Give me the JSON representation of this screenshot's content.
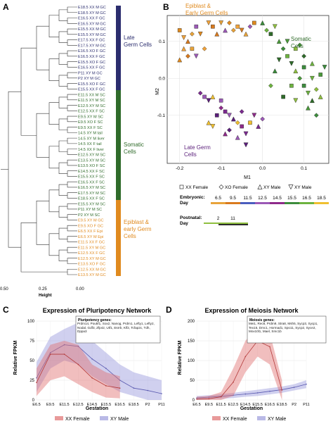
{
  "panels": {
    "A": {
      "letter": "A",
      "axis_ticks": [
        "0.50",
        "0.25",
        "0.00"
      ],
      "axis_label": "Height",
      "leaves": [
        "E18.5 XX M GC",
        "E18.5 XY M GC",
        "E16.5 XX F GC",
        "E16.5 XY M GC",
        "E15.5 XX M GC",
        "E15.5 XY M GC",
        "E17.5 XX F GC",
        "E17.5 XY M GC",
        "E16.5 XO F GC",
        "E16.5 XX F GC",
        "E15.5 XO F GC",
        "E16.5 XX F GC",
        "P11 XY M GC",
        "P2 XY M GC",
        "E15.5 XO F GC",
        "E15.5 XX F GC",
        "E11.5 XX M SC",
        "E11.5 XY M SC",
        "E12.5 XY M SC",
        "E12.5 XX F SC",
        "E9.5 XY M SC",
        "E9.5 XO F SC",
        "E9.5 XX F SC",
        "14.5 XY M tail",
        "14.5 XY M liver",
        "14.5 XX F tail",
        "14.5 XX F liver",
        "E12.5 XY M SC",
        "E13.5 XY M SC",
        "E13.5 XO F SC",
        "E14.5 XX F SC",
        "E15.5 XX F SC",
        "E16.5 XX F SC",
        "E16.5 XY M SC",
        "E17.5 XY M SC",
        "E18.5 XX F SC",
        "E15.5 XY M SC",
        "P11 XY M SC",
        "P2 XY M SC",
        "E9.5 XY M GC",
        "E9.5 XO F GC",
        "E6.5 XX F Epi",
        "E6.5 XY M Epi",
        "E11.5 XX F GC",
        "E11.5 XY M GC",
        "E12.5 XX F GC",
        "E12.5 XY M GC",
        "E13.5 XO F GC",
        "E12.5 XX M GC",
        "E13.5 XY M GC"
      ],
      "groups": [
        {
          "label": "Late Germ Cells",
          "color": "#2b2d6e"
        },
        {
          "label": "Somatic Cells",
          "color": "#2f6b2a"
        },
        {
          "label": "Epiblast & early Germ Cells",
          "color": "#e08a1e"
        }
      ]
    },
    "B": {
      "letter": "B",
      "xlabel": "M1",
      "ylabel": "M2",
      "x_ticks": [
        "-0.2",
        "-0.1",
        "0.0",
        "0.1"
      ],
      "y_ticks": [
        "0.1",
        "0.0",
        "-0.1"
      ],
      "annotations": {
        "epiblast": "Epiblast & Early Germ Cells",
        "late": "Late Germ Cells",
        "somatic": "Somatic Cells"
      },
      "legend": {
        "xx_female": "XX Female",
        "xo_female": "XO Female",
        "xy_male_up": "XY Male",
        "xy_male_down": "XY Male",
        "embryonic_label": "Embryonic: Day",
        "embryonic_days": [
          "6.5",
          "9.5",
          "11.5",
          "12.5",
          "14.5",
          "15.5",
          "16.5",
          "18.5"
        ],
        "embryonic_colors": [
          "#e8a33a",
          "#d97a1e",
          "#4a5dbe",
          "#9b59b6",
          "#8e2a8a",
          "#3c8c3c",
          "#6db33f",
          "#f0c030"
        ],
        "postnatal_label": "Postnatal: Day",
        "postnatal_days": [
          "2",
          "11"
        ],
        "postnatal_colors": [
          "#8fbf3f",
          "#2b2b2b"
        ]
      }
    },
    "C": {
      "letter": "C",
      "title": "Expression of Pluripotency Network",
      "ylabel": "Relative FPKM",
      "xlabel": "Gestation",
      "box_title": "Pluripotency genes:",
      "box_text": "Prdm14, Pou5f1, Sox2, Nanog, Prdm1, Lefty1, Lefty2, Nodal, Gdf3, Zfp42, Utf1, Esrrb, Klf2, Tcfap2c, Tdh, Dppa3",
      "legend": [
        "XX Female",
        "XY Male"
      ]
    },
    "D": {
      "letter": "D",
      "title": "Expression of Meiosis Network",
      "ylabel": "Relative FPKM",
      "xlabel": "Gestation",
      "box_title": "Meiosis genes:",
      "box_text": "Mei1, Rec8, Prdm9, Stra8, Msh5, Sycp3, Sycp1, Tex15, Dmc1, Hormad1, Spo11, Sycp2, Syce2, Mov10l1, Mael, Smc1b",
      "legend": [
        "XX Female",
        "XY Male"
      ]
    }
  },
  "chart_data": [
    {
      "type": "scatter",
      "panel": "B",
      "xlabel": "M1",
      "ylabel": "M2",
      "xlim": [
        -0.23,
        0.16
      ],
      "ylim": [
        -0.23,
        0.17
      ],
      "series": [
        {
          "name": "Epiblast & Early Germ Cells",
          "points": [
            [
              -0.2,
              0.13
            ],
            [
              -0.19,
              0.11
            ],
            [
              -0.18,
              0.1
            ],
            [
              -0.17,
              0.12
            ],
            [
              -0.16,
              0.14
            ],
            [
              -0.15,
              0.12
            ],
            [
              -0.19,
              0.08
            ],
            [
              -0.18,
              0.06
            ],
            [
              -0.17,
              0.08
            ],
            [
              -0.16,
              0.06
            ],
            [
              -0.2,
              0.05
            ],
            [
              -0.14,
              0.08
            ],
            [
              -0.12,
              0.14
            ],
            [
              -0.1,
              0.15
            ],
            [
              -0.09,
              0.13
            ],
            [
              -0.08,
              0.15
            ],
            [
              -0.06,
              0.14
            ],
            [
              -0.05,
              0.13
            ],
            [
              -0.04,
              0.12
            ],
            [
              -0.03,
              0.14
            ],
            [
              -0.02,
              0.15
            ],
            [
              -0.13,
              0.15
            ],
            [
              -0.11,
              0.12
            ],
            [
              -0.07,
              0.13
            ]
          ]
        },
        {
          "name": "Late Germ Cells",
          "points": [
            [
              -0.15,
              -0.04
            ],
            [
              -0.14,
              -0.05
            ],
            [
              -0.13,
              -0.06
            ],
            [
              -0.12,
              -0.05
            ],
            [
              -0.1,
              -0.08
            ],
            [
              -0.09,
              -0.09
            ],
            [
              -0.08,
              -0.1
            ],
            [
              -0.07,
              -0.11
            ],
            [
              -0.06,
              -0.12
            ],
            [
              -0.05,
              -0.13
            ],
            [
              -0.04,
              -0.15
            ],
            [
              -0.06,
              -0.16
            ],
            [
              -0.08,
              -0.14
            ],
            [
              -0.03,
              -0.12
            ],
            [
              -0.02,
              -0.1
            ],
            [
              -0.01,
              -0.13
            ],
            [
              0.0,
              -0.11
            ],
            [
              -0.11,
              -0.1
            ],
            [
              -0.12,
              -0.13
            ],
            [
              -0.09,
              -0.15
            ],
            [
              -0.05,
              -0.09
            ],
            [
              -0.1,
              -0.06
            ],
            [
              -0.04,
              -0.18
            ],
            [
              -0.13,
              -0.12
            ]
          ]
        },
        {
          "name": "Somatic Cells",
          "points": [
            [
              0.0,
              0.15
            ],
            [
              0.01,
              0.13
            ],
            [
              0.02,
              0.12
            ],
            [
              0.03,
              0.14
            ],
            [
              0.04,
              0.1
            ],
            [
              0.05,
              0.08
            ],
            [
              0.06,
              0.06
            ],
            [
              0.07,
              0.04
            ],
            [
              0.08,
              0.02
            ],
            [
              0.09,
              0.0
            ],
            [
              0.1,
              -0.02
            ],
            [
              0.11,
              -0.04
            ],
            [
              0.12,
              -0.06
            ],
            [
              0.13,
              -0.03
            ],
            [
              0.14,
              0.01
            ],
            [
              0.15,
              0.03
            ],
            [
              0.12,
              0.04
            ],
            [
              0.1,
              0.06
            ],
            [
              0.08,
              0.08
            ],
            [
              0.06,
              0.1
            ],
            [
              0.03,
              0.02
            ],
            [
              0.02,
              -0.02
            ],
            [
              0.05,
              -0.05
            ],
            [
              0.08,
              -0.06
            ],
            [
              0.11,
              -0.08
            ],
            [
              0.13,
              -0.1
            ],
            [
              0.07,
              -0.02
            ],
            [
              0.04,
              0.05
            ],
            [
              0.14,
              -0.05
            ],
            [
              0.09,
              0.09
            ],
            [
              0.1,
              0.03
            ],
            [
              0.12,
              0.0
            ]
          ]
        }
      ]
    },
    {
      "type": "area",
      "panel": "C",
      "title": "Expression of Pluripotency Network",
      "xlabel": "Gestation",
      "ylabel": "Relative FPKM",
      "categories": [
        "E6.5",
        "E9.5",
        "E11.5",
        "E12.5",
        "E14.5",
        "E15.5",
        "E16.5",
        "E18.5",
        "P2",
        "P11"
      ],
      "ylim": [
        0,
        100
      ],
      "y_ticks": [
        0,
        25,
        50,
        75,
        100
      ],
      "series": [
        {
          "name": "XX Female",
          "values": [
            22,
            58,
            58,
            45,
            28,
            18,
            15,
            null,
            null,
            null
          ],
          "lower": [
            5,
            25,
            30,
            20,
            10,
            3,
            2,
            null,
            null,
            null
          ],
          "upper": [
            40,
            70,
            75,
            70,
            45,
            35,
            30,
            null,
            null,
            null
          ]
        },
        {
          "name": "XY Male",
          "values": [
            28,
            60,
            70,
            68,
            52,
            40,
            25,
            15,
            12,
            8
          ],
          "lower": [
            10,
            40,
            50,
            45,
            30,
            20,
            10,
            5,
            0,
            0
          ],
          "upper": [
            48,
            80,
            90,
            98,
            75,
            60,
            45,
            35,
            30,
            25
          ]
        }
      ]
    },
    {
      "type": "area",
      "panel": "D",
      "title": "Expression of Meiosis Network",
      "xlabel": "Gestation",
      "ylabel": "Relative FPKM",
      "categories": [
        "E6.5",
        "E9.5",
        "E11.5",
        "E12.5",
        "E14.5",
        "E15.5",
        "E16.5",
        "E18.5",
        "P2",
        "P11"
      ],
      "ylim": [
        0,
        200
      ],
      "y_ticks": [
        0,
        50,
        100,
        150,
        200
      ],
      "series": [
        {
          "name": "XX Female",
          "values": [
            2,
            3,
            8,
            45,
            110,
            150,
            135,
            25,
            null,
            null
          ],
          "lower": [
            0,
            0,
            0,
            10,
            70,
            110,
            90,
            0,
            null,
            null
          ],
          "upper": [
            8,
            10,
            20,
            80,
            150,
            185,
            170,
            50,
            null,
            null
          ]
        },
        {
          "name": "XY Male",
          "values": [
            5,
            7,
            9,
            12,
            15,
            18,
            22,
            26,
            32,
            40
          ],
          "lower": [
            0,
            2,
            3,
            5,
            8,
            10,
            14,
            18,
            24,
            30
          ],
          "upper": [
            10,
            12,
            15,
            18,
            22,
            26,
            30,
            34,
            40,
            50
          ]
        }
      ]
    }
  ]
}
